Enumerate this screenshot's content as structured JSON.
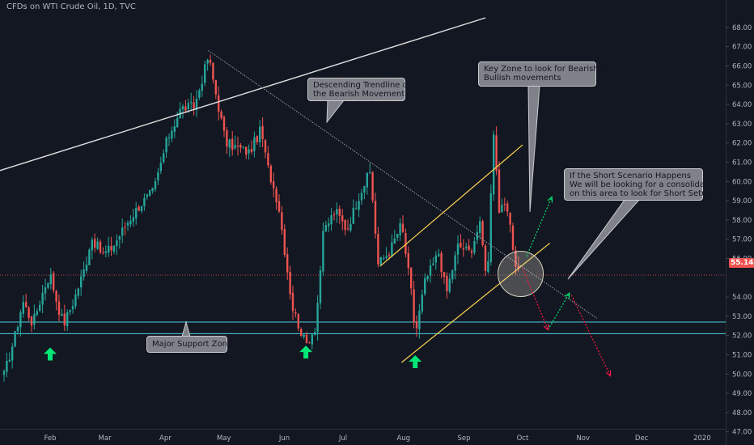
{
  "chart_title": "CFDs on WTI Crude Oil, 1D, TVC",
  "colors": {
    "background": "#131722",
    "up": "#26a69a",
    "down": "#ef5350",
    "support": "#4dd0e1",
    "channel": "#ffd54f",
    "trendline": "#e0e0e0",
    "arrow_up": "#00e676",
    "arrow_down": "#ff1744"
  },
  "current_price": "55.14",
  "annotations": {
    "descending": [
      "Descending Trendline of",
      "the Bearish Movement"
    ],
    "key_zone": [
      "Key Zone to look for Bearish or",
      "Bullish movements"
    ],
    "short_scenario": [
      "If the Short Scenario Happens",
      "We will be looking for a consolidation",
      "on this area to look for Short Setups"
    ],
    "support": [
      "Major Support Zone"
    ]
  },
  "chart_data": {
    "type": "candlestick",
    "title": "CFDs on WTI Crude Oil, 1D, TVC",
    "x_ticks": [
      "Feb",
      "Mar",
      "Apr",
      "May",
      "Jun",
      "Jul",
      "Aug",
      "Sep",
      "Oct",
      "Nov",
      "Dec",
      "2020"
    ],
    "y_ticks": [
      "68.00",
      "67.00",
      "66.00",
      "65.00",
      "64.00",
      "63.00",
      "62.00",
      "61.00",
      "60.00",
      "59.00",
      "58.00",
      "57.00",
      "56.00",
      "54.00",
      "53.00",
      "52.00",
      "51.00",
      "50.00",
      "49.00",
      "48.00",
      "47.00"
    ],
    "ylim": [
      46.7,
      68.5
    ],
    "last_price": 55.14,
    "support_zone": [
      52.1,
      52.7
    ],
    "price_path": [
      [
        "2019-01-08",
        49.8
      ],
      [
        "2019-01-14",
        52.0
      ],
      [
        "2019-01-18",
        53.8
      ],
      [
        "2019-01-23",
        52.6
      ],
      [
        "2019-01-29",
        54.5
      ],
      [
        "2019-02-01",
        55.2
      ],
      [
        "2019-02-05",
        53.5
      ],
      [
        "2019-02-08",
        52.6
      ],
      [
        "2019-02-13",
        53.8
      ],
      [
        "2019-02-19",
        55.6
      ],
      [
        "2019-02-22",
        57.1
      ],
      [
        "2019-02-28",
        56.2
      ],
      [
        "2019-03-05",
        56.6
      ],
      [
        "2019-03-12",
        57.8
      ],
      [
        "2019-03-19",
        58.8
      ],
      [
        "2019-03-26",
        59.5
      ],
      [
        "2019-04-02",
        62.2
      ],
      [
        "2019-04-09",
        63.8
      ],
      [
        "2019-04-16",
        63.9
      ],
      [
        "2019-04-23",
        66.5
      ],
      [
        "2019-04-26",
        65.0
      ],
      [
        "2019-05-02",
        62.0
      ],
      [
        "2019-05-07",
        61.8
      ],
      [
        "2019-05-14",
        61.5
      ],
      [
        "2019-05-20",
        62.7
      ],
      [
        "2019-05-23",
        60.9
      ],
      [
        "2019-05-29",
        58.8
      ],
      [
        "2019-06-05",
        53.5
      ],
      [
        "2019-06-12",
        51.5
      ],
      [
        "2019-06-17",
        52.5
      ],
      [
        "2019-06-21",
        57.4
      ],
      [
        "2019-06-27",
        58.5
      ],
      [
        "2019-07-03",
        57.5
      ],
      [
        "2019-07-10",
        59.5
      ],
      [
        "2019-07-15",
        60.5
      ],
      [
        "2019-07-19",
        55.7
      ],
      [
        "2019-07-25",
        56.4
      ],
      [
        "2019-07-31",
        57.8
      ],
      [
        "2019-08-05",
        54.2
      ],
      [
        "2019-08-07",
        52.0
      ],
      [
        "2019-08-12",
        54.8
      ],
      [
        "2019-08-19",
        56.3
      ],
      [
        "2019-08-23",
        54.2
      ],
      [
        "2019-08-29",
        56.7
      ],
      [
        "2019-09-04",
        56.3
      ],
      [
        "2019-09-09",
        57.8
      ],
      [
        "2019-09-13",
        54.8
      ],
      [
        "2019-09-16",
        62.9
      ],
      [
        "2019-09-19",
        58.5
      ],
      [
        "2019-09-23",
        58.6
      ],
      [
        "2019-09-27",
        55.9
      ],
      [
        "2019-09-30",
        55.14
      ]
    ],
    "drawings": {
      "long_trendline": {
        "from": [
          "2019-01-01",
          60.4
        ],
        "to": [
          "2019-09-12",
          68.5
        ]
      },
      "descending_trendline": {
        "from": [
          "2019-04-23",
          66.8
        ],
        "to": [
          "2019-11-08",
          52.9
        ]
      },
      "channel_upper": {
        "from": [
          "2019-07-20",
          55.6
        ],
        "to": [
          "2019-10-01",
          61.9
        ]
      },
      "channel_lower": {
        "from": [
          "2019-07-31",
          50.6
        ],
        "to": [
          "2019-10-15",
          56.8
        ]
      },
      "arrows_up_scenario": [
        {
          "from": [
            "2019-10-03",
            56.1
          ],
          "to": [
            "2019-10-16",
            59.2
          ]
        },
        {
          "from": [
            "2019-10-14",
            52.3
          ],
          "to": [
            "2019-10-25",
            54.2
          ]
        }
      ],
      "arrows_down_scenario": [
        {
          "from": [
            "2019-10-01",
            55.5
          ],
          "to": [
            "2019-10-14",
            52.3
          ]
        },
        {
          "from": [
            "2019-10-26",
            54.1
          ],
          "to": [
            "2019-11-15",
            49.9
          ]
        }
      ],
      "key_zone_circle": {
        "center": [
          "2019-09-30",
          55.2
        ]
      },
      "support_arrows": [
        [
          "2019-02-01",
          51.0
        ],
        [
          "2019-06-12",
          51.1
        ],
        [
          "2019-08-07",
          50.6
        ]
      ]
    }
  }
}
